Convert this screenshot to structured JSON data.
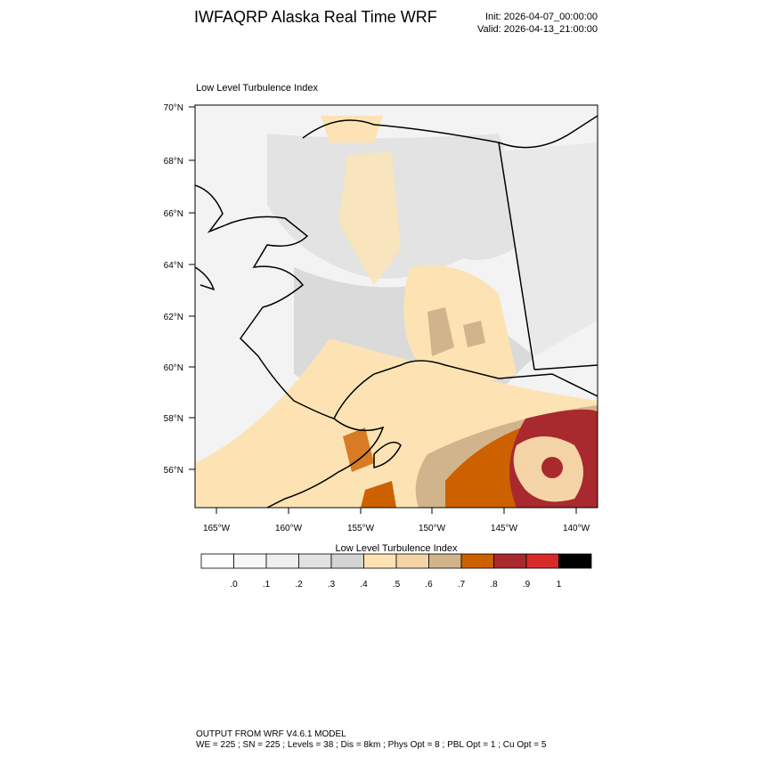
{
  "header": {
    "title": "IWFAQRP Alaska Real Time WRF",
    "init": "Init: 2026-04-07_00:00:00",
    "valid": "Valid: 2026-04-13_21:00:00"
  },
  "map": {
    "title": "Low Level Turbulence Index",
    "lat_labels": [
      "70°N",
      "68°N",
      "66°N",
      "64°N",
      "62°N",
      "60°N",
      "58°N",
      "56°N"
    ],
    "lon_labels": [
      "165°W",
      "160°W",
      "155°W",
      "150°W",
      "145°W",
      "140°W"
    ]
  },
  "colorbar": {
    "title": "Low Level Turbulence Index",
    "colors": [
      "#ffffff",
      "#f8f8f8",
      "#efefef",
      "#e2e2e2",
      "#d4d4d4",
      "#fde3b3",
      "#f4d4a6",
      "#d2b48c",
      "#cd6100",
      "#a8292e",
      "#d92a2a",
      "#000000"
    ],
    "labels": [
      ".0",
      ".1",
      ".2",
      ".3",
      ".4",
      ".5",
      ".6",
      ".7",
      ".8",
      ".9",
      "1"
    ]
  },
  "footer": {
    "line1": "OUTPUT FROM WRF V4.6.1 MODEL",
    "line2": "WE = 225 ; SN = 225 ; Levels = 38 ; Dis = 8km ; Phys Opt = 8 ; PBL Opt = 1 ; Cu Opt = 5"
  }
}
